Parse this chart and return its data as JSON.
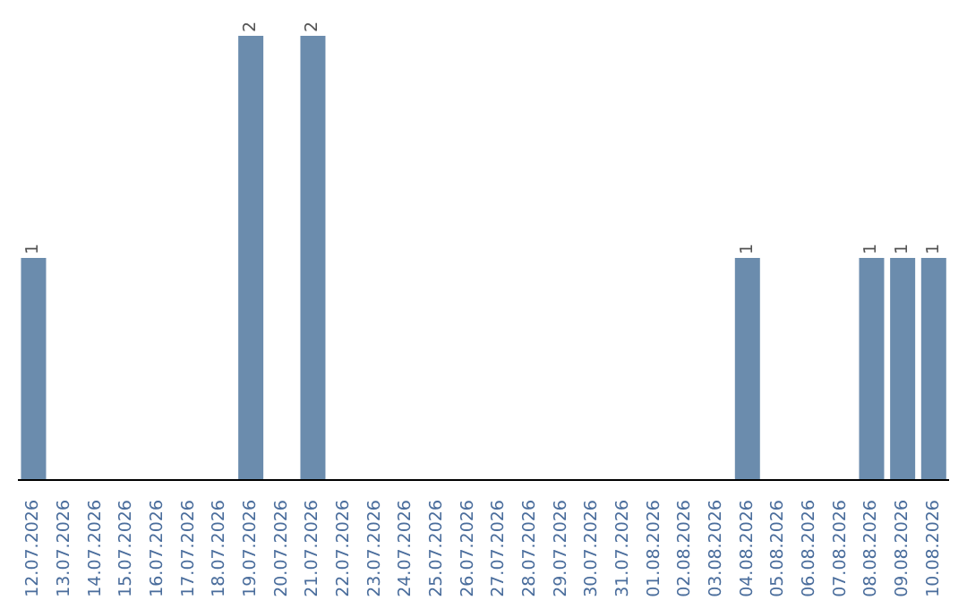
{
  "chart_data": {
    "type": "bar",
    "categories": [
      "12.07.2026",
      "13.07.2026",
      "14.07.2026",
      "15.07.2026",
      "16.07.2026",
      "17.07.2026",
      "18.07.2026",
      "19.07.2026",
      "20.07.2026",
      "21.07.2026",
      "22.07.2026",
      "23.07.2026",
      "24.07.2026",
      "25.07.2026",
      "26.07.2026",
      "27.07.2026",
      "28.07.2026",
      "29.07.2026",
      "30.07.2026",
      "31.07.2026",
      "01.08.2026",
      "02.08.2026",
      "03.08.2026",
      "04.08.2026",
      "05.08.2026",
      "06.08.2026",
      "07.08.2026",
      "08.08.2026",
      "09.08.2026",
      "10.08.2026"
    ],
    "values": [
      1,
      0,
      0,
      0,
      0,
      0,
      0,
      2,
      0,
      2,
      0,
      0,
      0,
      0,
      0,
      0,
      0,
      0,
      0,
      0,
      0,
      0,
      0,
      1,
      0,
      0,
      0,
      1,
      1,
      1
    ],
    "value_labels": [
      "1",
      null,
      null,
      null,
      null,
      null,
      null,
      "2",
      null,
      "2",
      null,
      null,
      null,
      null,
      null,
      null,
      null,
      null,
      null,
      null,
      null,
      null,
      null,
      "1",
      null,
      null,
      null,
      "1",
      "1",
      "1"
    ],
    "color": "#6b8cad"
  }
}
